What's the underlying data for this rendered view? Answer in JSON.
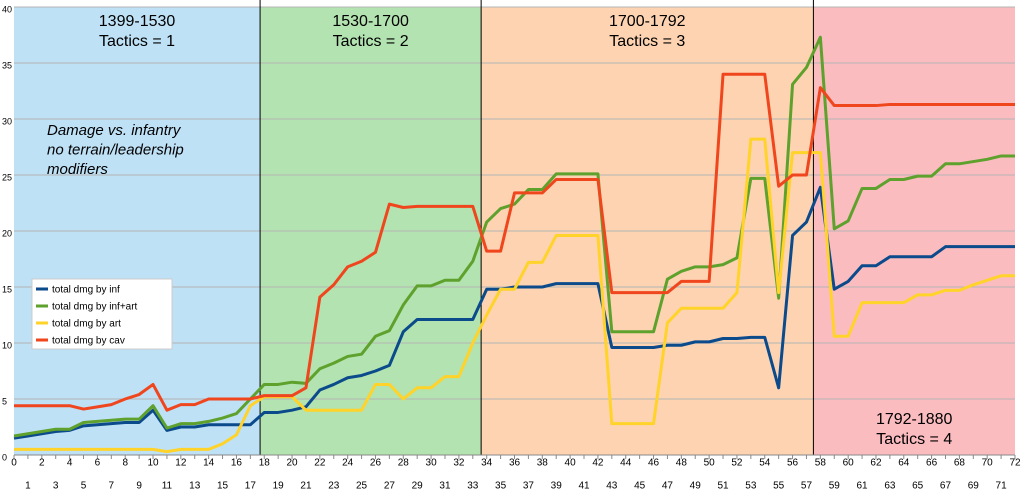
{
  "chart_data": {
    "type": "line",
    "annotation": [
      "Damage vs. infantry",
      "no terrain/leadership",
      "modifiers"
    ],
    "bands": [
      {
        "range": [
          0,
          17.7
        ],
        "label": "1399-1530",
        "sublabel": "Tactics  = 1",
        "color": "#bfe1f6"
      },
      {
        "range": [
          17.7,
          33.6
        ],
        "label": "1530-1700",
        "sublabel": "Tactics = 2",
        "color": "#b3e3b0"
      },
      {
        "range": [
          33.6,
          57.5
        ],
        "label": "1700-1792",
        "sublabel": "Tactics = 3",
        "color": "#fdd3b2"
      },
      {
        "range": [
          57.5,
          72
        ],
        "label": "1792-1880",
        "sublabel": "Tactics = 4",
        "color": "#fbbcc0"
      }
    ],
    "x": [
      0,
      1,
      2,
      3,
      4,
      5,
      6,
      7,
      8,
      9,
      10,
      11,
      12,
      13,
      14,
      15,
      16,
      17,
      18,
      19,
      20,
      21,
      22,
      23,
      24,
      25,
      26,
      27,
      28,
      29,
      30,
      31,
      32,
      33,
      34,
      35,
      36,
      37,
      38,
      39,
      40,
      41,
      42,
      43,
      44,
      45,
      46,
      47,
      48,
      49,
      50,
      51,
      52,
      53,
      54,
      55,
      56,
      57,
      58,
      59,
      60,
      61,
      62,
      63,
      64,
      65,
      66,
      67,
      68,
      69,
      70,
      71,
      72
    ],
    "series": [
      {
        "name": "total dmg by inf",
        "color": "#0b4a8b",
        "values": [
          1.5,
          1.7,
          1.9,
          2.1,
          2.2,
          2.6,
          2.7,
          2.8,
          2.9,
          2.9,
          4.0,
          2.2,
          2.5,
          2.5,
          2.7,
          2.7,
          2.7,
          2.7,
          3.8,
          3.8,
          4.0,
          4.3,
          5.8,
          6.3,
          6.9,
          7.1,
          7.5,
          8.0,
          11.0,
          12.1,
          12.1,
          12.1,
          12.1,
          12.1,
          14.8,
          14.8,
          15.0,
          15.0,
          15.0,
          15.3,
          15.3,
          15.3,
          15.3,
          9.6,
          9.6,
          9.6,
          9.6,
          9.8,
          9.8,
          10.1,
          10.1,
          10.4,
          10.4,
          10.5,
          10.5,
          6.0,
          19.6,
          20.8,
          23.9,
          14.8,
          15.5,
          16.9,
          16.9,
          17.7,
          17.7,
          17.7,
          17.7,
          18.6,
          18.6,
          18.6,
          18.6,
          18.6,
          18.6
        ]
      },
      {
        "name": "total dmg by inf+art",
        "color": "#5ea12c",
        "values": [
          1.7,
          1.9,
          2.1,
          2.3,
          2.3,
          2.9,
          3.0,
          3.1,
          3.2,
          3.2,
          4.4,
          2.4,
          2.8,
          2.8,
          3.0,
          3.3,
          3.7,
          5.0,
          6.3,
          6.3,
          6.5,
          6.4,
          7.7,
          8.2,
          8.8,
          9.0,
          10.6,
          11.1,
          13.4,
          15.1,
          15.1,
          15.6,
          15.6,
          17.3,
          20.8,
          22.0,
          22.4,
          23.7,
          23.7,
          25.1,
          25.1,
          25.1,
          25.1,
          11.0,
          11.0,
          11.0,
          11.0,
          15.7,
          16.4,
          16.8,
          16.8,
          17.0,
          17.6,
          24.7,
          24.7,
          14.0,
          33.1,
          34.6,
          37.3,
          20.2,
          20.9,
          23.8,
          23.8,
          24.6,
          24.6,
          24.9,
          24.9,
          26.0,
          26.0,
          26.2,
          26.4,
          26.7,
          26.7
        ]
      },
      {
        "name": "total dmg by art",
        "color": "#ffd32a",
        "values": [
          0.5,
          0.5,
          0.5,
          0.5,
          0.5,
          0.5,
          0.5,
          0.5,
          0.5,
          0.5,
          0.5,
          0.3,
          0.5,
          0.5,
          0.5,
          1.0,
          1.8,
          4.4,
          5.2,
          5.2,
          5.2,
          4.0,
          4.0,
          4.0,
          4.0,
          4.0,
          6.3,
          6.3,
          5.0,
          6.0,
          6.0,
          7.0,
          7.0,
          10.0,
          12.5,
          14.8,
          14.8,
          17.2,
          17.2,
          19.6,
          19.6,
          19.6,
          19.6,
          2.8,
          2.8,
          2.8,
          2.8,
          11.8,
          13.1,
          13.1,
          13.1,
          13.1,
          14.5,
          28.2,
          28.2,
          14.5,
          27.0,
          27.0,
          27.0,
          10.6,
          10.6,
          13.6,
          13.6,
          13.6,
          13.6,
          14.3,
          14.3,
          14.7,
          14.7,
          15.2,
          15.6,
          16.0,
          16.0
        ]
      },
      {
        "name": "total dmg by cav",
        "color": "#f0461e",
        "values": [
          4.4,
          4.4,
          4.4,
          4.4,
          4.4,
          4.1,
          4.3,
          4.5,
          5.0,
          5.4,
          6.3,
          4.0,
          4.5,
          4.5,
          5.0,
          5.0,
          5.0,
          5.0,
          5.3,
          5.3,
          5.3,
          6.0,
          14.1,
          15.2,
          16.8,
          17.3,
          18.1,
          22.4,
          22.1,
          22.2,
          22.2,
          22.2,
          22.2,
          22.2,
          18.2,
          18.2,
          23.4,
          23.4,
          23.4,
          24.6,
          24.6,
          24.6,
          24.6,
          14.5,
          14.5,
          14.5,
          14.5,
          14.5,
          15.5,
          15.5,
          15.5,
          34.0,
          34.0,
          34.0,
          34.0,
          24.0,
          25.0,
          25.0,
          32.8,
          31.2,
          31.2,
          31.2,
          31.2,
          31.3,
          31.3,
          31.3,
          31.3,
          31.3,
          31.3,
          31.3,
          31.3,
          31.3,
          31.3
        ]
      }
    ],
    "xlim": [
      0,
      72
    ],
    "xticks": [
      0,
      1,
      2,
      3,
      4,
      5,
      6,
      7,
      8,
      9,
      10,
      11,
      12,
      13,
      14,
      15,
      16,
      17,
      18,
      19,
      20,
      21,
      22,
      23,
      24,
      25,
      26,
      27,
      28,
      29,
      30,
      31,
      32,
      33,
      34,
      35,
      36,
      37,
      38,
      39,
      40,
      41,
      42,
      43,
      44,
      45,
      46,
      47,
      48,
      49,
      50,
      51,
      52,
      53,
      54,
      55,
      56,
      57,
      58,
      59,
      60,
      61,
      62,
      63,
      64,
      65,
      66,
      67,
      68,
      69,
      70,
      71,
      72
    ],
    "ylim": [
      0,
      40
    ],
    "yticks": [
      0,
      5,
      10,
      15,
      20,
      25,
      30,
      35,
      40
    ],
    "grid": true,
    "legend": "left"
  }
}
